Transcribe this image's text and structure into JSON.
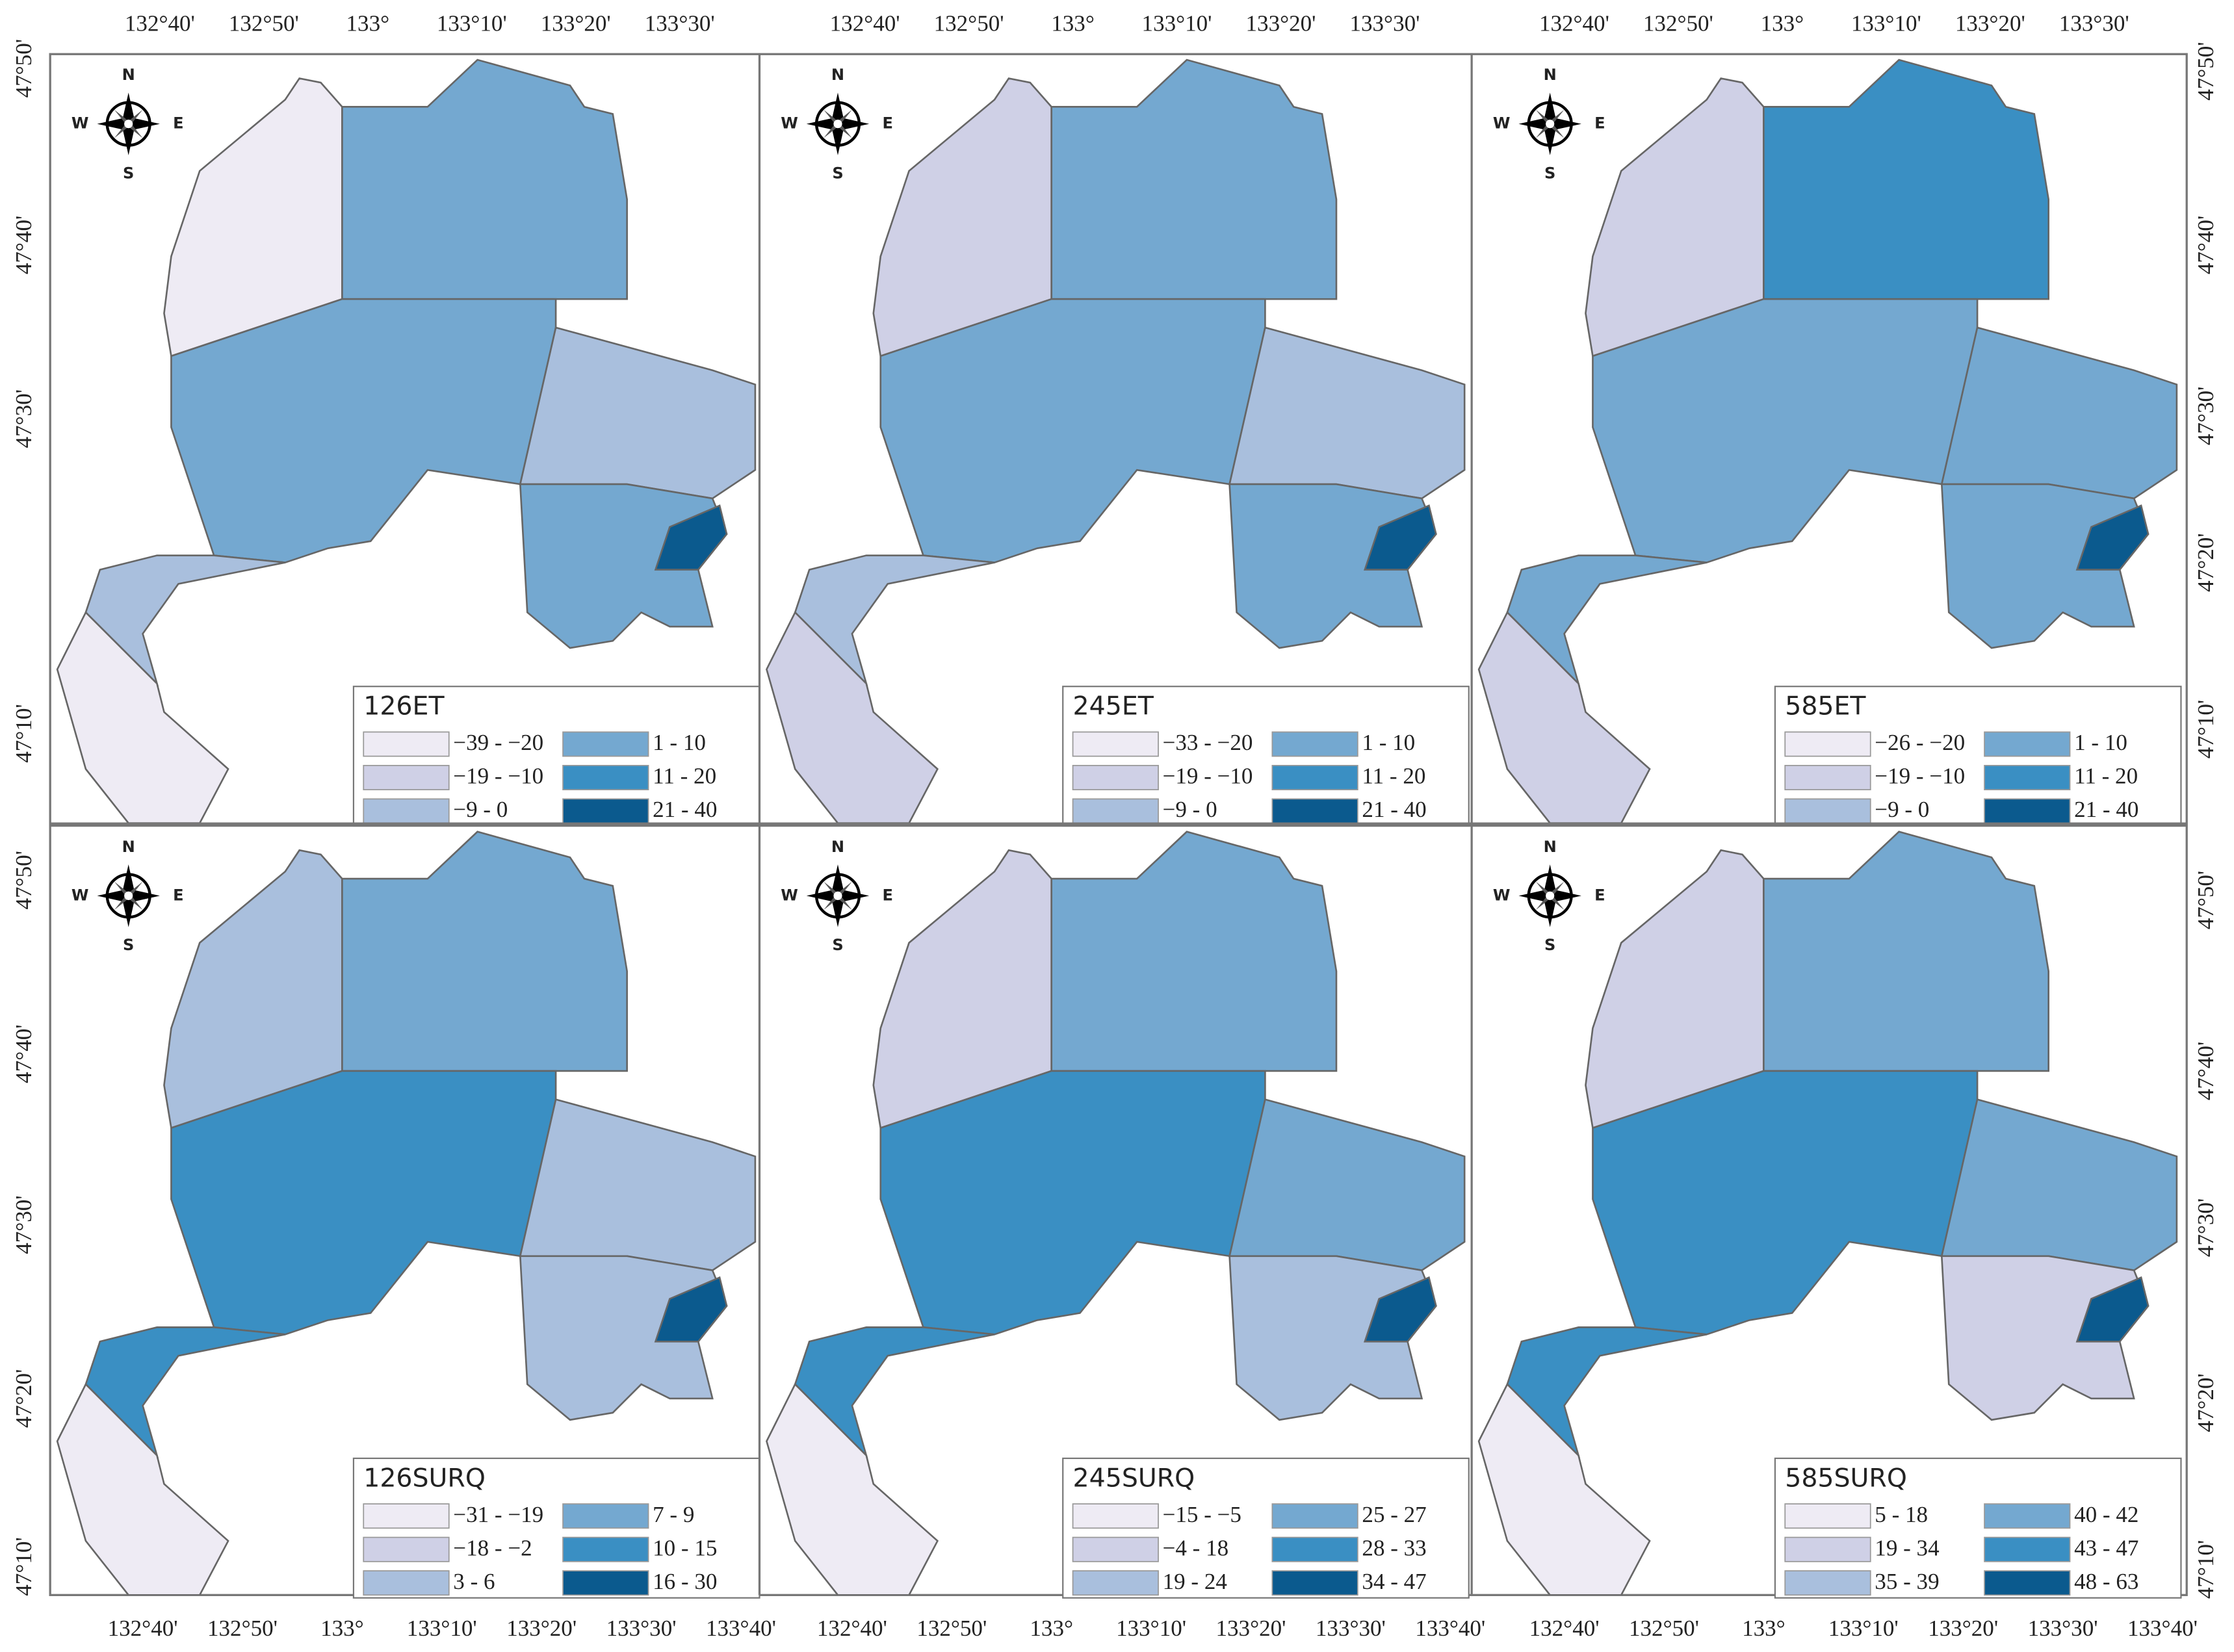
{
  "axes": {
    "top": [
      [
        "132°40'",
        "132°50'",
        "133°",
        "133°10'",
        "133°20'",
        "133°30'"
      ],
      [
        "132°40'",
        "132°50'",
        "133°",
        "133°10'",
        "133°20'",
        "133°30'"
      ],
      [
        "132°40'",
        "132°50'",
        "133°",
        "133°10'",
        "133°20'",
        "133°30'"
      ]
    ],
    "bottom": [
      [
        "132°40'",
        "132°50'",
        "133°",
        "133°10'",
        "133°20'",
        "133°30'",
        "133°40'"
      ],
      [
        "132°40'",
        "132°50'",
        "133°",
        "133°10'",
        "133°20'",
        "133°30'",
        "133°40'"
      ],
      [
        "132°40'",
        "132°50'",
        "133°",
        "133°10'",
        "133°20'",
        "133°30'",
        "133°40'"
      ]
    ],
    "left": [
      [
        "47°50'",
        "47°40'",
        "47°30'",
        "47°10'"
      ],
      [
        "47°50'",
        "47°40'",
        "47°30'",
        "47°20'",
        "47°10'"
      ]
    ],
    "right": [
      [
        "47°50'",
        "47°40'",
        "47°30'",
        "47°20'",
        "47°10'"
      ],
      [
        "47°50'",
        "47°40'",
        "47°30'",
        "47°20'",
        "47°10'"
      ]
    ]
  },
  "compass": {
    "n": "N",
    "s": "S",
    "e": "E",
    "w": "W"
  },
  "panels": [
    {
      "title": "126ET",
      "legend": [
        {
          "label": "−39 - −20",
          "color": "#eeebf4"
        },
        {
          "label": "−19 - −10",
          "color": "#cfd0e6"
        },
        {
          "label": "−9 - 0",
          "color": "#a9bfdd"
        },
        {
          "label": "1 - 10",
          "color": "#74a8d0"
        },
        {
          "label": "11 - 20",
          "color": "#3a8fc3"
        },
        {
          "label": "21 - 40",
          "color": "#0b5a8e"
        }
      ]
    },
    {
      "title": "245ET",
      "legend": [
        {
          "label": "−33 - −20",
          "color": "#eeebf4"
        },
        {
          "label": "−19 - −10",
          "color": "#cfd0e6"
        },
        {
          "label": "−9 - 0",
          "color": "#a9bfdd"
        },
        {
          "label": "1 - 10",
          "color": "#74a8d0"
        },
        {
          "label": "11 - 20",
          "color": "#3a8fc3"
        },
        {
          "label": "21 - 40",
          "color": "#0b5a8e"
        }
      ]
    },
    {
      "title": "585ET",
      "legend": [
        {
          "label": "−26 - −20",
          "color": "#eeebf4"
        },
        {
          "label": "−19 - −10",
          "color": "#cfd0e6"
        },
        {
          "label": "−9 - 0",
          "color": "#a9bfdd"
        },
        {
          "label": "1 - 10",
          "color": "#74a8d0"
        },
        {
          "label": "11 - 20",
          "color": "#3a8fc3"
        },
        {
          "label": "21 - 40",
          "color": "#0b5a8e"
        }
      ]
    },
    {
      "title": "126SURQ",
      "legend": [
        {
          "label": "−31 - −19",
          "color": "#eeebf4"
        },
        {
          "label": "−18 - −2",
          "color": "#cfd0e6"
        },
        {
          "label": "3 - 6",
          "color": "#a9bfdd"
        },
        {
          "label": "7 - 9",
          "color": "#74a8d0"
        },
        {
          "label": "10 - 15",
          "color": "#3a8fc3"
        },
        {
          "label": "16 - 30",
          "color": "#0b5a8e"
        }
      ]
    },
    {
      "title": "245SURQ",
      "legend": [
        {
          "label": "−15 - −5",
          "color": "#eeebf4"
        },
        {
          "label": "−4 - 18",
          "color": "#cfd0e6"
        },
        {
          "label": "19 - 24",
          "color": "#a9bfdd"
        },
        {
          "label": "25 - 27",
          "color": "#74a8d0"
        },
        {
          "label": "28 - 33",
          "color": "#3a8fc3"
        },
        {
          "label": "34 - 47",
          "color": "#0b5a8e"
        }
      ]
    },
    {
      "title": "585SURQ",
      "legend": [
        {
          "label": "5 - 18",
          "color": "#eeebf4"
        },
        {
          "label": "19 - 34",
          "color": "#cfd0e6"
        },
        {
          "label": "35 - 39",
          "color": "#a9bfdd"
        },
        {
          "label": "40 - 42",
          "color": "#74a8d0"
        },
        {
          "label": "43 - 47",
          "color": "#3a8fc3"
        },
        {
          "label": "48 - 63",
          "color": "#0b5a8e"
        }
      ]
    }
  ]
}
